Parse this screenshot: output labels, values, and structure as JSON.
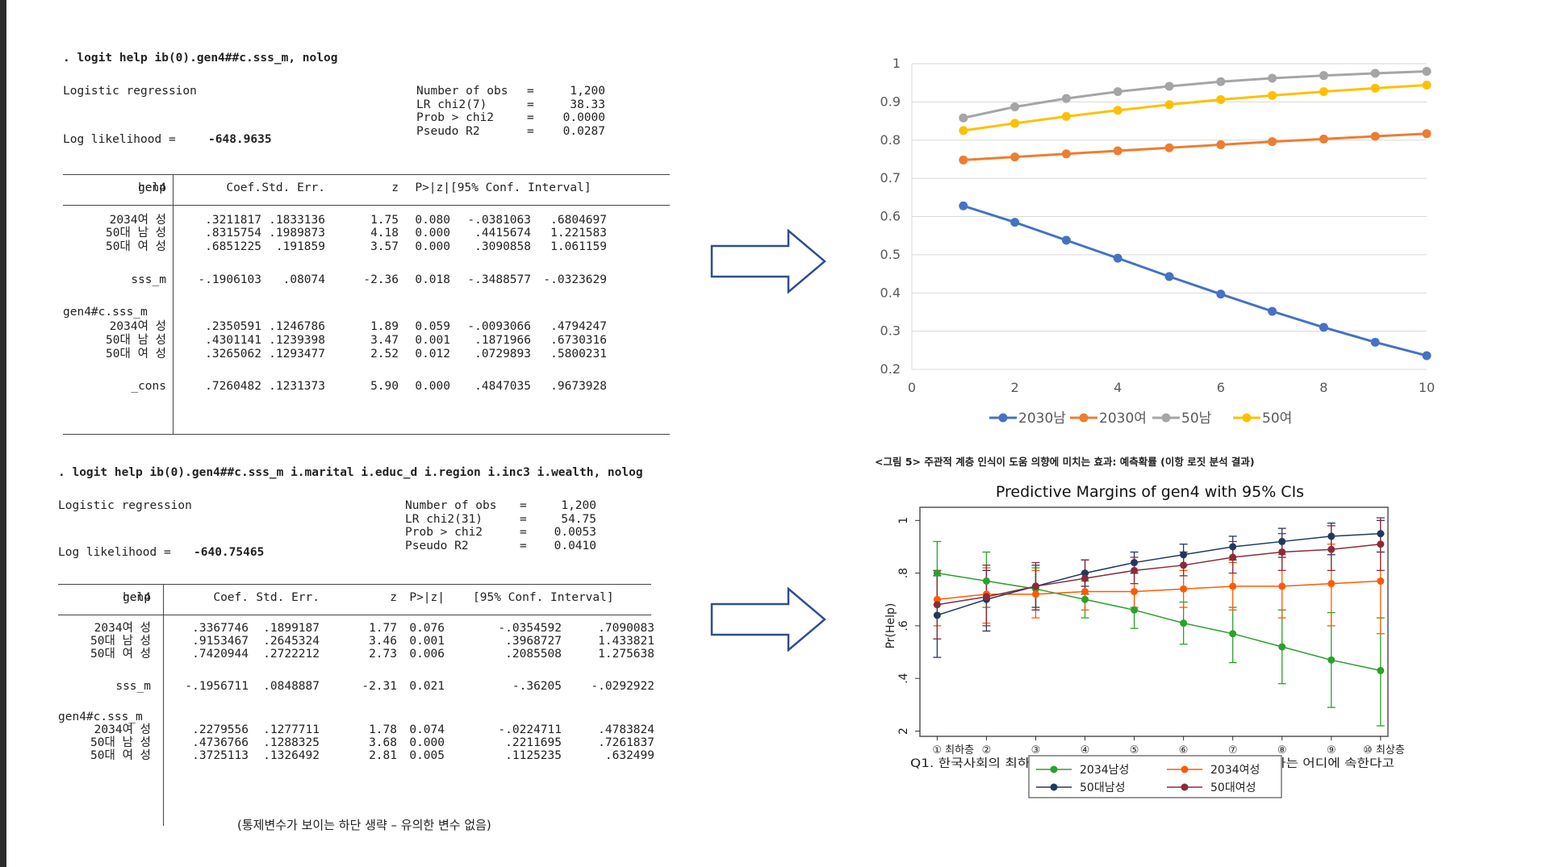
{
  "regression1": {
    "command": ". logit help ib(0).gen4##c.sss_m, nolog",
    "model": "Logistic regression",
    "loglik_label": "Log likelihood =",
    "loglik_value": "-648.9635",
    "stats": [
      {
        "label": "Number of obs",
        "eq": "=",
        "value": "1,200"
      },
      {
        "label": "LR chi2(7)",
        "eq": "=",
        "value": "38.33"
      },
      {
        "label": "Prob > chi2",
        "eq": "=",
        "value": "0.0000"
      },
      {
        "label": "Pseudo R2",
        "eq": "=",
        "value": "0.0287"
      }
    ],
    "headers": [
      "help",
      "Coef.",
      "Std. Err.",
      "z",
      "P>|z|",
      "[95% Conf. Interval]"
    ],
    "rows": [
      {
        "label": "gen4",
        "values": [
          "",
          "",
          "",
          "",
          "",
          ""
        ]
      },
      {
        "label": "2034여 성",
        "values": [
          ".3211817",
          ".1833136",
          "1.75",
          "0.080",
          "-.0381063",
          ".6804697"
        ]
      },
      {
        "label": "50대 남 성",
        "values": [
          ".8315754",
          ".1989873",
          "4.18",
          "0.000",
          ".4415674",
          "1.221583"
        ]
      },
      {
        "label": "50대 여 성",
        "values": [
          ".6851225",
          ".191859",
          "3.57",
          "0.000",
          ".3090858",
          "1.061159"
        ]
      },
      {
        "label": "sss_m",
        "values": [
          "-.1906103",
          ".08074",
          "-2.36",
          "0.018",
          "-.3488577",
          "-.0323629"
        ]
      },
      {
        "label": "gen4#c.sss_m",
        "values": [
          "",
          "",
          "",
          "",
          "",
          ""
        ]
      },
      {
        "label": "2034여 성",
        "values": [
          ".2350591",
          ".1246786",
          "1.89",
          "0.059",
          "-.0093066",
          ".4794247"
        ]
      },
      {
        "label": "50대 남 성",
        "values": [
          ".4301141",
          ".1239398",
          "3.47",
          "0.001",
          ".1871966",
          ".6730316"
        ]
      },
      {
        "label": "50대 여 성",
        "values": [
          ".3265062",
          ".1293477",
          "2.52",
          "0.012",
          ".0729893",
          ".5800231"
        ]
      },
      {
        "label": "_cons",
        "values": [
          ".7260482",
          ".1231373",
          "5.90",
          "0.000",
          ".4847035",
          ".9673928"
        ]
      }
    ]
  },
  "regression2": {
    "command": ". logit help ib(0).gen4##c.sss_m i.marital i.educ_d i.region i.inc3 i.wealth, nolog",
    "model": "Logistic regression",
    "loglik_label": "Log likelihood =",
    "loglik_value": "-640.75465",
    "stats": [
      {
        "label": "Number of obs",
        "eq": "=",
        "value": "1,200"
      },
      {
        "label": "LR chi2(31)",
        "eq": "=",
        "value": "54.75"
      },
      {
        "label": "Prob > chi2",
        "eq": "=",
        "value": "0.0053"
      },
      {
        "label": "Pseudo R2",
        "eq": "=",
        "value": "0.0410"
      }
    ],
    "headers": [
      "help",
      "Coef.",
      "Std. Err.",
      "z",
      "P>|z|",
      "[95% Conf. Interval]"
    ],
    "rows": [
      {
        "label": "gen4",
        "values": [
          "",
          "",
          "",
          "",
          "",
          ""
        ]
      },
      {
        "label": "2034여 성",
        "values": [
          ".3367746",
          ".1899187",
          "1.77",
          "0.076",
          "-.0354592",
          ".7090083"
        ]
      },
      {
        "label": "50대 남 성",
        "values": [
          ".9153467",
          ".2645324",
          "3.46",
          "0.001",
          ".3968727",
          "1.433821"
        ]
      },
      {
        "label": "50대 여 성",
        "values": [
          ".7420944",
          ".2722212",
          "2.73",
          "0.006",
          ".2085508",
          "1.275638"
        ]
      },
      {
        "label": "sss_m",
        "values": [
          "-.1956711",
          ".0848887",
          "-2.31",
          "0.021",
          "-.36205",
          "-.0292922"
        ]
      },
      {
        "label": "gen4#c.sss_m",
        "values": [
          "",
          "",
          "",
          "",
          "",
          ""
        ]
      },
      {
        "label": "2034여 성",
        "values": [
          ".2279556",
          ".1277711",
          "1.78",
          "0.074",
          "-.0224711",
          ".4783824"
        ]
      },
      {
        "label": "50대 남 성",
        "values": [
          ".4736766",
          ".1288325",
          "3.68",
          "0.000",
          ".2211695",
          ".7261837"
        ]
      },
      {
        "label": "50대 여 성",
        "values": [
          ".3725113",
          ".1326492",
          "2.81",
          "0.005",
          ".1125235",
          ".632499"
        ]
      }
    ],
    "footnote": "(통제변수가 보이는 하단 생략 – 유의한 변수 없음)"
  },
  "chart_data": [
    {
      "type": "line",
      "title": "",
      "x": [
        1,
        2,
        3,
        4,
        5,
        6,
        7,
        8,
        9,
        10
      ],
      "xlim": [
        0,
        10
      ],
      "xticks": [
        0,
        2,
        4,
        6,
        8,
        10
      ],
      "ylim": [
        0.2,
        1
      ],
      "yticks": [
        "0.2",
        "0.3",
        "0.4",
        "0.5",
        "0.6",
        "0.7",
        "0.8",
        "0.9",
        "1"
      ],
      "grid": true,
      "legend_position": "bottom",
      "series": [
        {
          "name": "2030남",
          "color": "#4472c4",
          "values": [
            0.628,
            0.585,
            0.538,
            0.491,
            0.443,
            0.397,
            0.352,
            0.31,
            0.271,
            0.236
          ]
        },
        {
          "name": "2030여",
          "color": "#ed7d31",
          "values": [
            0.748,
            0.756,
            0.764,
            0.772,
            0.78,
            0.788,
            0.796,
            0.803,
            0.81,
            0.817
          ]
        },
        {
          "name": "50남",
          "color": "#a5a5a5",
          "values": [
            0.858,
            0.887,
            0.909,
            0.927,
            0.941,
            0.953,
            0.962,
            0.969,
            0.975,
            0.98
          ]
        },
        {
          "name": "50여",
          "color": "#ffc000",
          "values": [
            0.825,
            0.844,
            0.862,
            0.878,
            0.893,
            0.906,
            0.917,
            0.927,
            0.936,
            0.944
          ]
        }
      ]
    },
    {
      "type": "line",
      "title": "Predictive Margins of gen4 with 95% CIs",
      "suptitle": "<그림 5> 주관적 계층 인식이 도움 의향에 미치는 효과: 예측확률 (이항 로짓 분석 결과)",
      "ylabel": "Pr(Help)",
      "xlabel": "Q1. 한국사회의 최하층을 1로 하고, 최상층을 10으로 한다면 귀하는 어디에 속한다고",
      "x": [
        1,
        2,
        3,
        4,
        5,
        6,
        7,
        8,
        9,
        10
      ],
      "xlim": [
        0.65,
        10.15
      ],
      "ylim": [
        0.18,
        1.05
      ],
      "yticks": [
        "2",
        ".4",
        ".6",
        ".8",
        "1"
      ],
      "xtick_labels": [
        "① 최하층",
        "②",
        "③",
        "④",
        "⑤",
        "⑥",
        "⑦",
        "⑧",
        "⑨",
        "⑩ 최상층"
      ],
      "legend_position": "bottom",
      "series": [
        {
          "name": "2034남성",
          "color": "#2ca02c",
          "values": [
            0.8,
            0.77,
            0.74,
            0.7,
            0.66,
            0.61,
            0.57,
            0.52,
            0.47,
            0.43
          ],
          "lower": [
            0.68,
            0.67,
            0.66,
            0.63,
            0.59,
            0.53,
            0.46,
            0.38,
            0.29,
            0.22
          ],
          "upper": [
            0.92,
            0.88,
            0.82,
            0.77,
            0.73,
            0.69,
            0.67,
            0.66,
            0.65,
            0.63
          ]
        },
        {
          "name": "2034여성",
          "color": "#ff5a00",
          "values": [
            0.7,
            0.72,
            0.72,
            0.73,
            0.73,
            0.74,
            0.75,
            0.75,
            0.76,
            0.77
          ],
          "lower": [
            0.6,
            0.61,
            0.63,
            0.66,
            0.67,
            0.67,
            0.66,
            0.63,
            0.6,
            0.57
          ],
          "upper": [
            0.81,
            0.82,
            0.81,
            0.8,
            0.8,
            0.81,
            0.84,
            0.87,
            0.91,
            0.95
          ]
        },
        {
          "name": "50대남성",
          "color": "#1f3a5f",
          "values": [
            0.64,
            0.7,
            0.75,
            0.8,
            0.84,
            0.87,
            0.9,
            0.92,
            0.94,
            0.95
          ],
          "lower": [
            0.48,
            0.58,
            0.67,
            0.75,
            0.8,
            0.83,
            0.85,
            0.86,
            0.87,
            0.88
          ],
          "upper": [
            0.79,
            0.81,
            0.83,
            0.85,
            0.88,
            0.91,
            0.94,
            0.97,
            0.99,
            1.0
          ]
        },
        {
          "name": "50대여성",
          "color": "#8b2a3a",
          "values": [
            0.68,
            0.71,
            0.75,
            0.78,
            0.81,
            0.83,
            0.86,
            0.88,
            0.89,
            0.91
          ],
          "lower": [
            0.55,
            0.6,
            0.66,
            0.72,
            0.76,
            0.79,
            0.8,
            0.81,
            0.81,
            0.81
          ],
          "upper": [
            0.81,
            0.83,
            0.84,
            0.85,
            0.86,
            0.88,
            0.92,
            0.95,
            0.98,
            1.01
          ]
        }
      ]
    }
  ]
}
